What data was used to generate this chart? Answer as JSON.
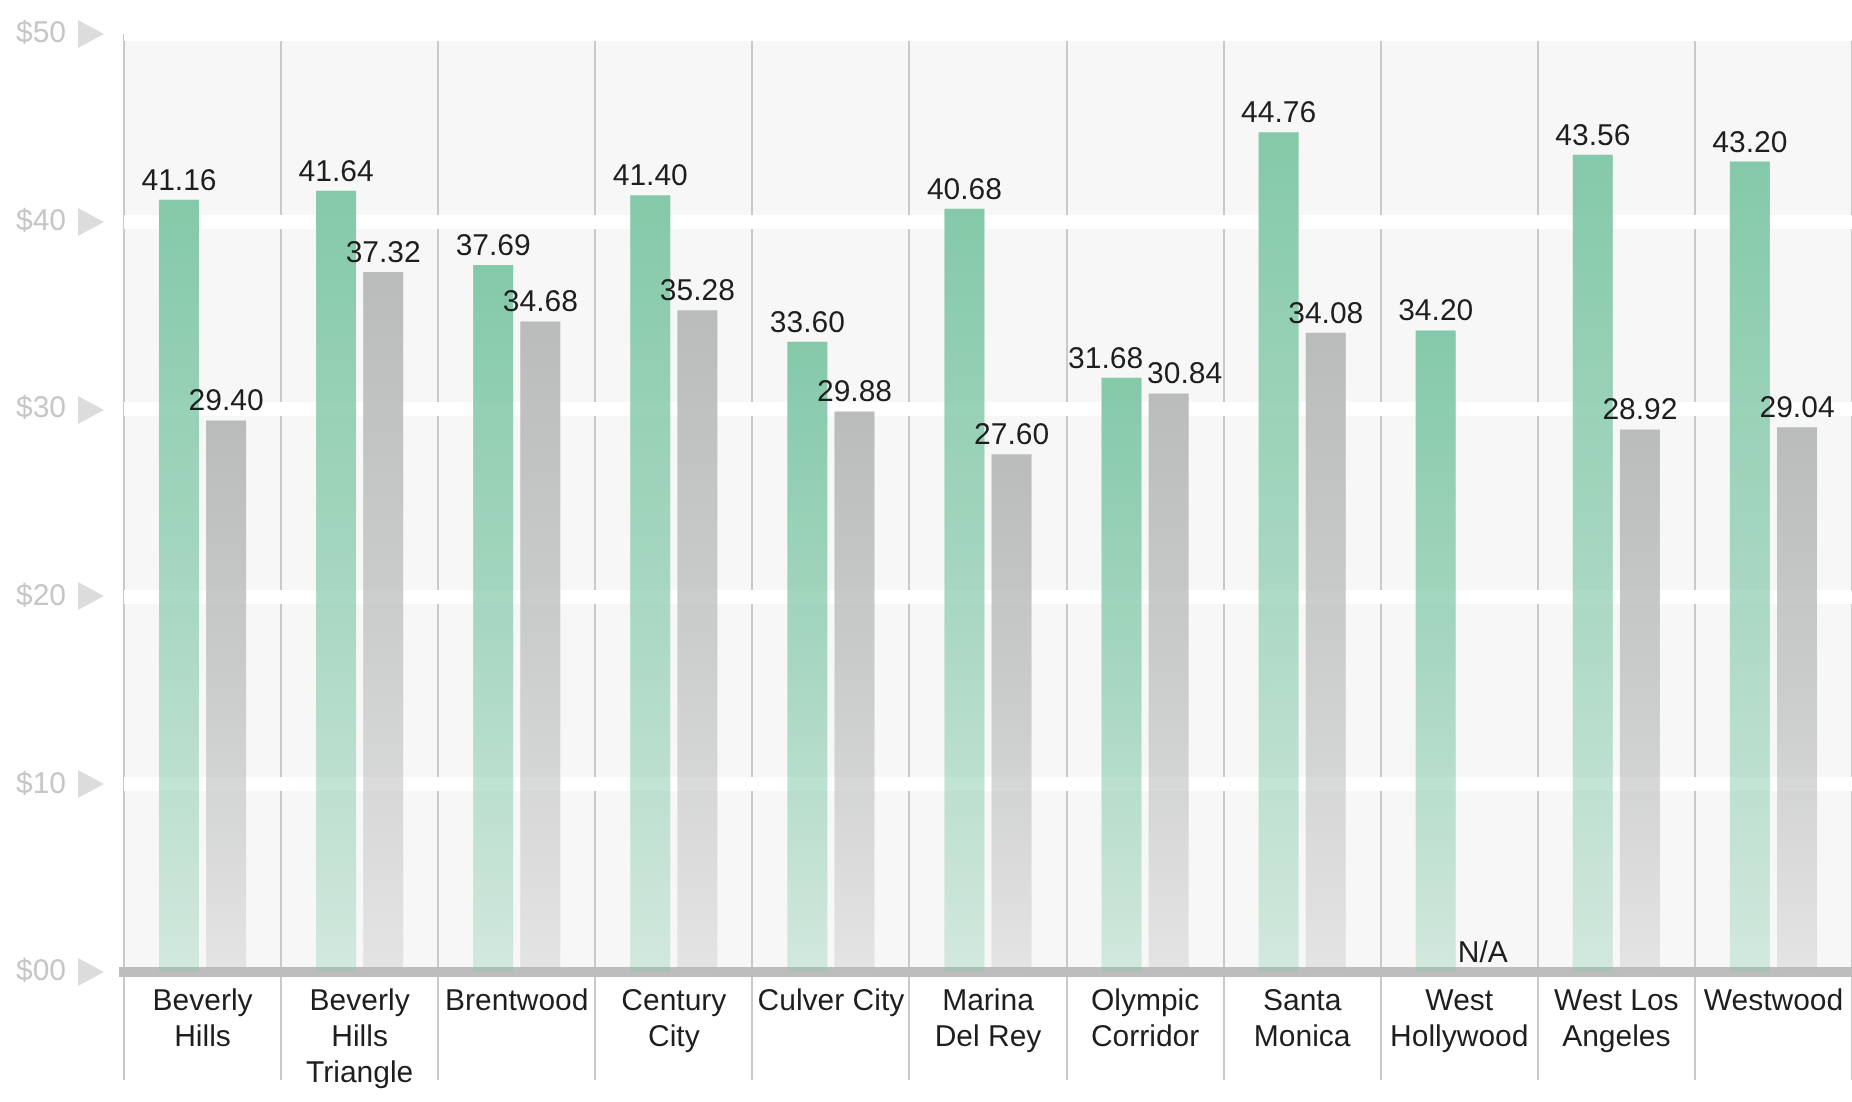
{
  "chart_data": {
    "type": "bar",
    "categories": [
      "Beverly Hills",
      "Beverly Hills Triangle",
      "Brentwood",
      "Century City",
      "Culver City",
      "Marina Del Rey",
      "Olympic Corridor",
      "Santa Monica",
      "West Hollywood",
      "West Los Angeles",
      "Westwood"
    ],
    "series": [
      {
        "color": "#84c9a9",
        "values": [
          41.16,
          41.64,
          37.69,
          41.4,
          33.6,
          40.68,
          31.68,
          44.76,
          34.2,
          43.56,
          43.2
        ],
        "value_labels": [
          "41.16",
          "41.64",
          "37.69",
          "41.40",
          "33.60",
          "40.68",
          "31.68",
          "44.76",
          "34.20",
          "43.56",
          "43.20"
        ]
      },
      {
        "color": "#b9bcba",
        "values": [
          29.4,
          37.32,
          34.68,
          35.28,
          29.88,
          27.6,
          30.84,
          34.08,
          null,
          28.92,
          29.04
        ],
        "value_labels": [
          "29.40",
          "37.32",
          "34.68",
          "35.28",
          "29.88",
          "27.60",
          "30.84",
          "34.08",
          "N/A",
          "28.92",
          "29.04"
        ]
      }
    ],
    "ylim": [
      0,
      50
    ],
    "yticks": [
      {
        "value": 0,
        "label": "$00"
      },
      {
        "value": 10,
        "label": "$10"
      },
      {
        "value": 20,
        "label": "$20"
      },
      {
        "value": 30,
        "label": "$30"
      },
      {
        "value": 40,
        "label": "$40"
      },
      {
        "value": 50,
        "label": "$50"
      }
    ],
    "grid": true
  }
}
